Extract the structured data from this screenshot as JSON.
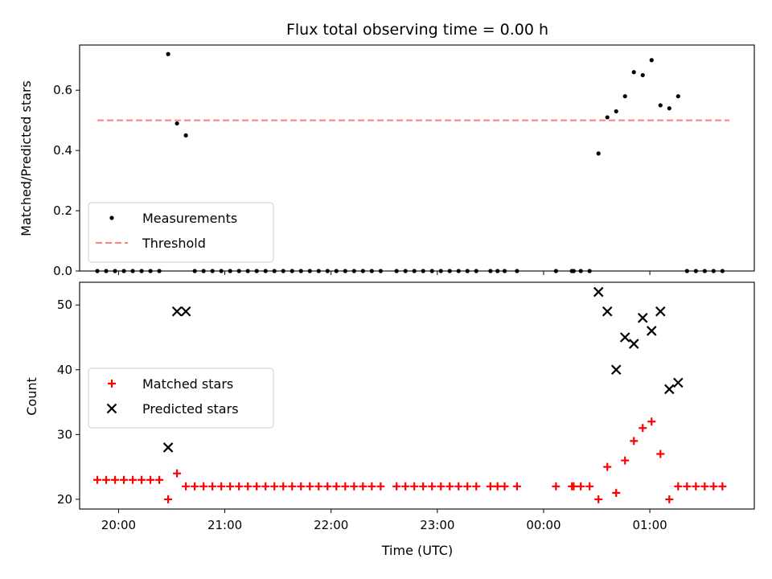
{
  "chart_data": [
    {
      "type": "scatter",
      "title": "Flux total observing time = 0.00 h",
      "ylabel": "Matched/Predicted stars",
      "xlabel": "",
      "xlim": [
        "19:38",
        "1:59"
      ],
      "ylim": [
        0,
        0.75
      ],
      "yticks": [
        0.0,
        0.2,
        0.4,
        0.6
      ],
      "ytick_labels": [
        "0.0",
        "0.2",
        "0.4",
        "0.6"
      ],
      "legend_position": "lower-left",
      "threshold": {
        "name": "Threshold",
        "value": 0.5,
        "x_range": [
          "19:48",
          "1:45"
        ],
        "color": "#ff7f7f",
        "style": "dashed"
      },
      "series": [
        {
          "name": "Measurements",
          "marker": "dot",
          "color": "#000000",
          "points": [
            [
              "19:48",
              0
            ],
            [
              "19:53",
              0
            ],
            [
              "19:58",
              0
            ],
            [
              "20:03",
              0
            ],
            [
              "20:08",
              0
            ],
            [
              "20:13",
              0
            ],
            [
              "20:18",
              0
            ],
            [
              "20:23",
              0
            ],
            [
              "20:28",
              0.72
            ],
            [
              "20:33",
              0.49
            ],
            [
              "20:38",
              0.45
            ],
            [
              "20:43",
              0
            ],
            [
              "20:48",
              0
            ],
            [
              "20:53",
              0
            ],
            [
              "20:58",
              0
            ],
            [
              "21:03",
              0
            ],
            [
              "21:08",
              0
            ],
            [
              "21:13",
              0
            ],
            [
              "21:18",
              0
            ],
            [
              "21:23",
              0
            ],
            [
              "21:28",
              0
            ],
            [
              "21:33",
              0
            ],
            [
              "21:38",
              0
            ],
            [
              "21:43",
              0
            ],
            [
              "21:48",
              0
            ],
            [
              "21:53",
              0
            ],
            [
              "21:58",
              0
            ],
            [
              "22:03",
              0
            ],
            [
              "22:08",
              0
            ],
            [
              "22:13",
              0
            ],
            [
              "22:18",
              0
            ],
            [
              "22:23",
              0
            ],
            [
              "22:28",
              0
            ],
            [
              "22:37",
              0
            ],
            [
              "22:42",
              0
            ],
            [
              "22:47",
              0
            ],
            [
              "22:52",
              0
            ],
            [
              "22:57",
              0
            ],
            [
              "23:02",
              0
            ],
            [
              "23:07",
              0
            ],
            [
              "23:12",
              0
            ],
            [
              "23:17",
              0
            ],
            [
              "23:22",
              0
            ],
            [
              "23:30",
              0
            ],
            [
              "23:34",
              0
            ],
            [
              "23:38",
              0
            ],
            [
              "23:45",
              0
            ],
            [
              "00:07",
              0
            ],
            [
              "00:16",
              0
            ],
            [
              "00:17",
              0
            ],
            [
              "00:21",
              0
            ],
            [
              "00:26",
              0
            ],
            [
              "00:31",
              0.39
            ],
            [
              "00:36",
              0.51
            ],
            [
              "00:41",
              0.53
            ],
            [
              "00:46",
              0.58
            ],
            [
              "00:51",
              0.66
            ],
            [
              "00:56",
              0.65
            ],
            [
              "01:01",
              0.7
            ],
            [
              "01:06",
              0.55
            ],
            [
              "01:11",
              0.54
            ],
            [
              "01:16",
              0.58
            ],
            [
              "01:21",
              0
            ],
            [
              "01:26",
              0
            ],
            [
              "01:31",
              0
            ],
            [
              "01:36",
              0
            ],
            [
              "01:41",
              0
            ]
          ]
        }
      ]
    },
    {
      "type": "scatter",
      "title": "",
      "ylabel": "Count",
      "xlabel": "Time (UTC)",
      "xlim": [
        "19:38",
        "1:59"
      ],
      "xticks": [
        "20:00",
        "21:00",
        "22:00",
        "23:00",
        "00:00",
        "01:00"
      ],
      "ylim": [
        18.5,
        53.5
      ],
      "yticks": [
        20,
        30,
        40,
        50
      ],
      "ytick_labels": [
        "20",
        "30",
        "40",
        "50"
      ],
      "legend_position": "center-left",
      "series": [
        {
          "name": "Matched stars",
          "marker": "plus",
          "color": "#ff0000",
          "points": [
            [
              "19:48",
              23
            ],
            [
              "19:53",
              23
            ],
            [
              "19:58",
              23
            ],
            [
              "20:03",
              23
            ],
            [
              "20:08",
              23
            ],
            [
              "20:13",
              23
            ],
            [
              "20:18",
              23
            ],
            [
              "20:23",
              23
            ],
            [
              "20:28",
              20
            ],
            [
              "20:33",
              24
            ],
            [
              "20:38",
              22
            ],
            [
              "20:43",
              22
            ],
            [
              "20:48",
              22
            ],
            [
              "20:53",
              22
            ],
            [
              "20:58",
              22
            ],
            [
              "21:03",
              22
            ],
            [
              "21:08",
              22
            ],
            [
              "21:13",
              22
            ],
            [
              "21:18",
              22
            ],
            [
              "21:23",
              22
            ],
            [
              "21:28",
              22
            ],
            [
              "21:33",
              22
            ],
            [
              "21:38",
              22
            ],
            [
              "21:43",
              22
            ],
            [
              "21:48",
              22
            ],
            [
              "21:53",
              22
            ],
            [
              "21:58",
              22
            ],
            [
              "22:03",
              22
            ],
            [
              "22:08",
              22
            ],
            [
              "22:13",
              22
            ],
            [
              "22:18",
              22
            ],
            [
              "22:23",
              22
            ],
            [
              "22:28",
              22
            ],
            [
              "22:37",
              22
            ],
            [
              "22:42",
              22
            ],
            [
              "22:47",
              22
            ],
            [
              "22:52",
              22
            ],
            [
              "22:57",
              22
            ],
            [
              "23:02",
              22
            ],
            [
              "23:07",
              22
            ],
            [
              "23:12",
              22
            ],
            [
              "23:17",
              22
            ],
            [
              "23:22",
              22
            ],
            [
              "23:30",
              22
            ],
            [
              "23:34",
              22
            ],
            [
              "23:38",
              22
            ],
            [
              "23:45",
              22
            ],
            [
              "00:07",
              22
            ],
            [
              "00:16",
              22
            ],
            [
              "00:17",
              22
            ],
            [
              "00:21",
              22
            ],
            [
              "00:26",
              22
            ],
            [
              "00:31",
              20
            ],
            [
              "00:36",
              25
            ],
            [
              "00:41",
              21
            ],
            [
              "00:46",
              26
            ],
            [
              "00:51",
              29
            ],
            [
              "00:56",
              31
            ],
            [
              "01:01",
              32
            ],
            [
              "01:06",
              27
            ],
            [
              "01:11",
              20
            ],
            [
              "01:16",
              22
            ],
            [
              "01:21",
              22
            ],
            [
              "01:26",
              22
            ],
            [
              "01:31",
              22
            ],
            [
              "01:36",
              22
            ],
            [
              "01:41",
              22
            ]
          ]
        },
        {
          "name": "Predicted stars",
          "marker": "x",
          "color": "#000000",
          "points": [
            [
              "20:28",
              28
            ],
            [
              "20:33",
              49
            ],
            [
              "20:38",
              49
            ],
            [
              "00:31",
              52
            ],
            [
              "00:36",
              49
            ],
            [
              "00:41",
              40
            ],
            [
              "00:46",
              45
            ],
            [
              "00:51",
              44
            ],
            [
              "00:56",
              48
            ],
            [
              "01:01",
              46
            ],
            [
              "01:06",
              49
            ],
            [
              "01:11",
              37
            ],
            [
              "01:16",
              38
            ]
          ]
        }
      ]
    }
  ]
}
